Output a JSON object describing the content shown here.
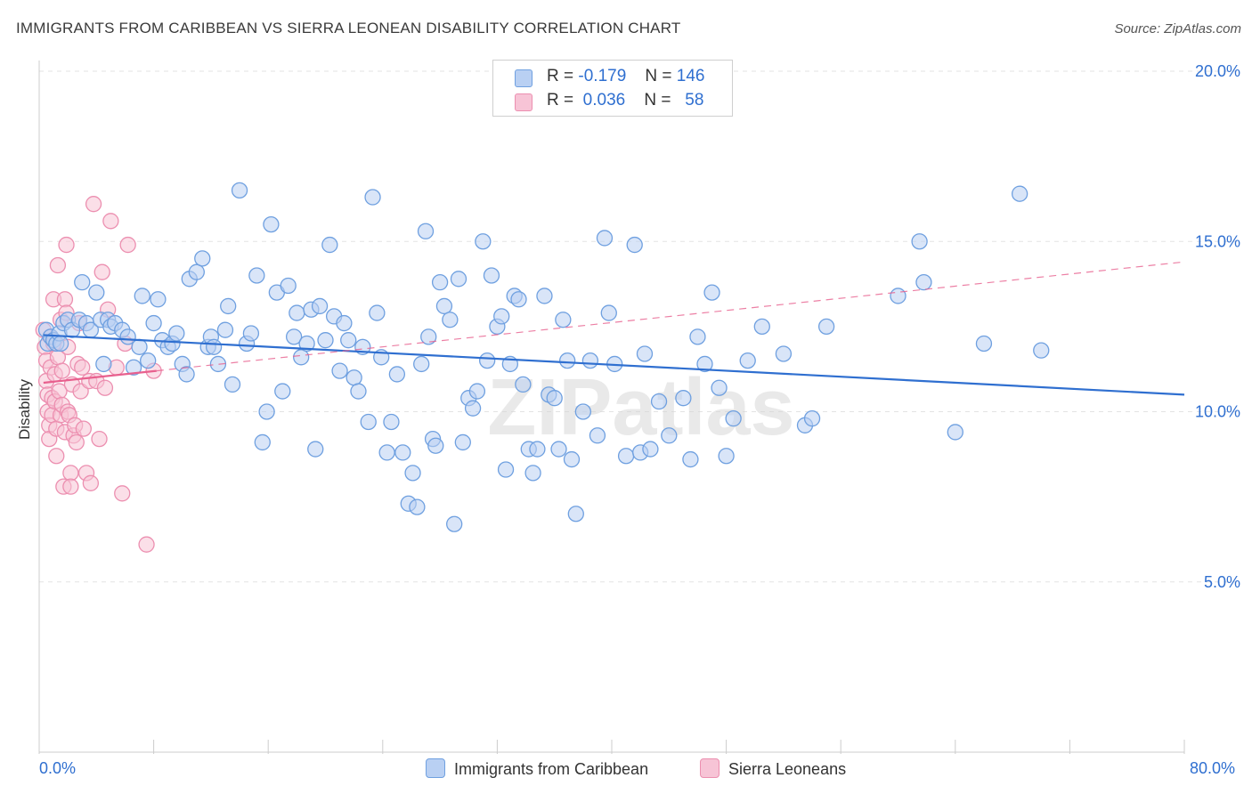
{
  "title": "IMMIGRANTS FROM CARIBBEAN VS SIERRA LEONEAN DISABILITY CORRELATION CHART",
  "source": "Source: ZipAtlas.com",
  "watermark": "ZIPatlas",
  "legend": {
    "rows": [
      {
        "r_label": "R =",
        "r_value": "-0.179",
        "n_label": "N =",
        "n_value": "146"
      },
      {
        "r_label": "R =",
        "r_value": "0.036",
        "n_label": "N =",
        "n_value": "58"
      }
    ]
  },
  "bottom_legend": {
    "series1": "Immigrants from Caribbean",
    "series2": "Sierra Leoneans"
  },
  "x_axis_labels": {
    "min": "0.0%",
    "max": "80.0%"
  },
  "colors": {
    "blue": "#6fa0e0",
    "blue_fill": "#b9d0f3",
    "blue_line": "#2f6fd0",
    "pink": "#ec8fb0",
    "pink_fill": "#f7c4d6",
    "pink_line": "#e8608e",
    "tick_text": "#2f6fd0",
    "grid": "#e3e3e3"
  },
  "chart_data": {
    "type": "scatter",
    "title": "IMMIGRANTS FROM CARIBBEAN VS SIERRA LEONEAN DISABILITY CORRELATION CHART",
    "xlabel": "",
    "ylabel": "Disability",
    "xlim": [
      0,
      80
    ],
    "ylim": [
      0,
      20
    ],
    "y_ticks": [
      {
        "value": 5,
        "label": "5.0%"
      },
      {
        "value": 10,
        "label": "10.0%"
      },
      {
        "value": 15,
        "label": "15.0%"
      },
      {
        "value": 20,
        "label": "20.0%"
      }
    ],
    "x_tick_count": 10,
    "grid": "horizontal dashed",
    "series": [
      {
        "name": "Immigrants from Caribbean",
        "color": "#6fa0e0",
        "trend": {
          "x0": 0.3,
          "y0": 12.25,
          "x1": 80,
          "y1": 10.5,
          "style": "solid"
        },
        "points": [
          [
            0.5,
            12.4
          ],
          [
            0.6,
            12.0
          ],
          [
            0.8,
            12.2
          ],
          [
            1.0,
            12.1
          ],
          [
            1.2,
            12.0
          ],
          [
            1.4,
            12.3
          ],
          [
            1.5,
            12.0
          ],
          [
            1.7,
            12.6
          ],
          [
            2.0,
            12.7
          ],
          [
            2.3,
            12.4
          ],
          [
            2.8,
            12.7
          ],
          [
            3.0,
            13.8
          ],
          [
            3.3,
            12.6
          ],
          [
            3.6,
            12.4
          ],
          [
            4.0,
            13.5
          ],
          [
            4.3,
            12.7
          ],
          [
            4.5,
            11.4
          ],
          [
            4.8,
            12.7
          ],
          [
            5.0,
            12.5
          ],
          [
            5.3,
            12.6
          ],
          [
            5.8,
            12.4
          ],
          [
            6.2,
            12.2
          ],
          [
            6.6,
            11.3
          ],
          [
            7.0,
            11.9
          ],
          [
            7.2,
            13.4
          ],
          [
            7.6,
            11.5
          ],
          [
            8.0,
            12.6
          ],
          [
            8.3,
            13.3
          ],
          [
            8.6,
            12.1
          ],
          [
            9.0,
            11.9
          ],
          [
            9.3,
            12.0
          ],
          [
            9.6,
            12.3
          ],
          [
            10.0,
            11.4
          ],
          [
            10.3,
            11.1
          ],
          [
            10.5,
            13.9
          ],
          [
            11.0,
            14.1
          ],
          [
            11.4,
            14.5
          ],
          [
            11.8,
            11.9
          ],
          [
            12.0,
            12.2
          ],
          [
            12.2,
            11.9
          ],
          [
            12.5,
            11.4
          ],
          [
            13.0,
            12.4
          ],
          [
            13.2,
            13.1
          ],
          [
            13.5,
            10.8
          ],
          [
            14.0,
            16.5
          ],
          [
            14.5,
            12.0
          ],
          [
            14.8,
            12.3
          ],
          [
            15.2,
            14.0
          ],
          [
            15.6,
            9.1
          ],
          [
            15.9,
            10.0
          ],
          [
            16.2,
            15.5
          ],
          [
            16.6,
            13.5
          ],
          [
            17.0,
            10.6
          ],
          [
            17.4,
            13.7
          ],
          [
            17.8,
            12.2
          ],
          [
            18.0,
            12.9
          ],
          [
            18.3,
            11.6
          ],
          [
            18.7,
            12.0
          ],
          [
            19.0,
            13.0
          ],
          [
            19.3,
            8.9
          ],
          [
            19.6,
            13.1
          ],
          [
            20.0,
            12.1
          ],
          [
            20.3,
            14.9
          ],
          [
            20.6,
            12.8
          ],
          [
            21.0,
            11.2
          ],
          [
            21.3,
            12.6
          ],
          [
            21.6,
            12.1
          ],
          [
            22.0,
            11.0
          ],
          [
            22.3,
            10.6
          ],
          [
            22.6,
            11.9
          ],
          [
            23.0,
            9.7
          ],
          [
            23.3,
            16.3
          ],
          [
            23.6,
            12.9
          ],
          [
            23.9,
            11.6
          ],
          [
            24.3,
            8.8
          ],
          [
            24.6,
            9.7
          ],
          [
            25.0,
            11.1
          ],
          [
            25.4,
            8.8
          ],
          [
            25.8,
            7.3
          ],
          [
            26.1,
            8.2
          ],
          [
            26.4,
            7.2
          ],
          [
            26.7,
            11.4
          ],
          [
            27.0,
            15.3
          ],
          [
            27.2,
            12.2
          ],
          [
            27.5,
            9.2
          ],
          [
            27.7,
            9.0
          ],
          [
            28.0,
            13.8
          ],
          [
            28.3,
            13.1
          ],
          [
            28.7,
            12.7
          ],
          [
            29.0,
            6.7
          ],
          [
            29.3,
            13.9
          ],
          [
            29.6,
            9.1
          ],
          [
            30.0,
            10.4
          ],
          [
            30.3,
            10.1
          ],
          [
            30.6,
            10.6
          ],
          [
            31.0,
            15.0
          ],
          [
            31.3,
            11.5
          ],
          [
            31.6,
            14.0
          ],
          [
            32.0,
            12.5
          ],
          [
            32.3,
            12.8
          ],
          [
            32.6,
            8.3
          ],
          [
            32.9,
            11.4
          ],
          [
            33.2,
            13.4
          ],
          [
            33.5,
            13.3
          ],
          [
            33.8,
            10.8
          ],
          [
            34.2,
            8.9
          ],
          [
            34.5,
            8.2
          ],
          [
            34.8,
            8.9
          ],
          [
            35.3,
            13.4
          ],
          [
            35.6,
            10.5
          ],
          [
            36.0,
            10.4
          ],
          [
            36.3,
            8.9
          ],
          [
            36.6,
            12.7
          ],
          [
            36.9,
            11.5
          ],
          [
            37.2,
            8.6
          ],
          [
            37.5,
            7.0
          ],
          [
            38.0,
            10.0
          ],
          [
            38.5,
            11.5
          ],
          [
            39.0,
            9.3
          ],
          [
            39.5,
            15.1
          ],
          [
            39.8,
            12.9
          ],
          [
            40.2,
            11.4
          ],
          [
            41.0,
            8.7
          ],
          [
            41.6,
            14.9
          ],
          [
            42.0,
            8.8
          ],
          [
            42.3,
            11.7
          ],
          [
            42.7,
            8.9
          ],
          [
            43.3,
            10.3
          ],
          [
            44.0,
            9.3
          ],
          [
            45.0,
            10.4
          ],
          [
            45.5,
            8.6
          ],
          [
            46.0,
            12.2
          ],
          [
            46.5,
            11.4
          ],
          [
            47.0,
            13.5
          ],
          [
            47.5,
            10.7
          ],
          [
            48.0,
            8.7
          ],
          [
            48.5,
            9.8
          ],
          [
            49.5,
            11.5
          ],
          [
            50.5,
            12.5
          ],
          [
            52.0,
            11.7
          ],
          [
            53.5,
            9.6
          ],
          [
            54.0,
            9.8
          ],
          [
            55.0,
            12.5
          ],
          [
            60.0,
            13.4
          ],
          [
            61.5,
            15.0
          ],
          [
            61.8,
            13.8
          ],
          [
            68.5,
            16.4
          ],
          [
            64.0,
            9.4
          ],
          [
            66.0,
            12.0
          ],
          [
            70.0,
            11.8
          ]
        ]
      },
      {
        "name": "Sierra Leoneans",
        "color": "#ec8fb0",
        "trend": {
          "x0": 0.3,
          "y0": 10.85,
          "x1": 8.2,
          "y1": 11.2,
          "style": "solid",
          "ext_x1": 80,
          "ext_y1": 14.4,
          "ext_style": "dashed"
        },
        "points": [
          [
            0.3,
            12.4
          ],
          [
            0.4,
            11.9
          ],
          [
            0.5,
            11.5
          ],
          [
            0.5,
            10.9
          ],
          [
            0.6,
            10.5
          ],
          [
            0.6,
            10.0
          ],
          [
            0.7,
            9.6
          ],
          [
            0.7,
            9.2
          ],
          [
            0.8,
            12.2
          ],
          [
            0.8,
            11.3
          ],
          [
            0.9,
            10.4
          ],
          [
            0.9,
            9.9
          ],
          [
            1.0,
            13.3
          ],
          [
            1.0,
            12.0
          ],
          [
            1.1,
            11.1
          ],
          [
            1.1,
            10.3
          ],
          [
            1.2,
            9.5
          ],
          [
            1.2,
            8.7
          ],
          [
            1.3,
            14.3
          ],
          [
            1.3,
            11.6
          ],
          [
            1.4,
            10.6
          ],
          [
            1.5,
            9.9
          ],
          [
            1.5,
            12.7
          ],
          [
            1.6,
            11.2
          ],
          [
            1.6,
            10.2
          ],
          [
            1.7,
            7.8
          ],
          [
            1.8,
            13.3
          ],
          [
            1.8,
            9.4
          ],
          [
            1.9,
            12.9
          ],
          [
            1.9,
            14.9
          ],
          [
            2.0,
            11.9
          ],
          [
            2.0,
            10.0
          ],
          [
            2.1,
            9.9
          ],
          [
            2.2,
            8.2
          ],
          [
            2.2,
            7.8
          ],
          [
            2.3,
            10.8
          ],
          [
            2.4,
            9.3
          ],
          [
            2.5,
            9.6
          ],
          [
            2.6,
            9.1
          ],
          [
            2.7,
            11.4
          ],
          [
            2.8,
            12.6
          ],
          [
            2.9,
            10.6
          ],
          [
            3.0,
            11.3
          ],
          [
            3.1,
            9.5
          ],
          [
            3.3,
            8.2
          ],
          [
            3.5,
            10.9
          ],
          [
            3.6,
            7.9
          ],
          [
            3.8,
            16.1
          ],
          [
            4.0,
            10.9
          ],
          [
            4.2,
            9.2
          ],
          [
            4.4,
            14.1
          ],
          [
            4.6,
            10.7
          ],
          [
            4.8,
            13.0
          ],
          [
            5.0,
            15.6
          ],
          [
            5.4,
            11.3
          ],
          [
            5.8,
            7.6
          ],
          [
            6.0,
            12.0
          ],
          [
            6.2,
            14.9
          ],
          [
            7.5,
            6.1
          ],
          [
            8.0,
            11.2
          ]
        ]
      }
    ]
  }
}
